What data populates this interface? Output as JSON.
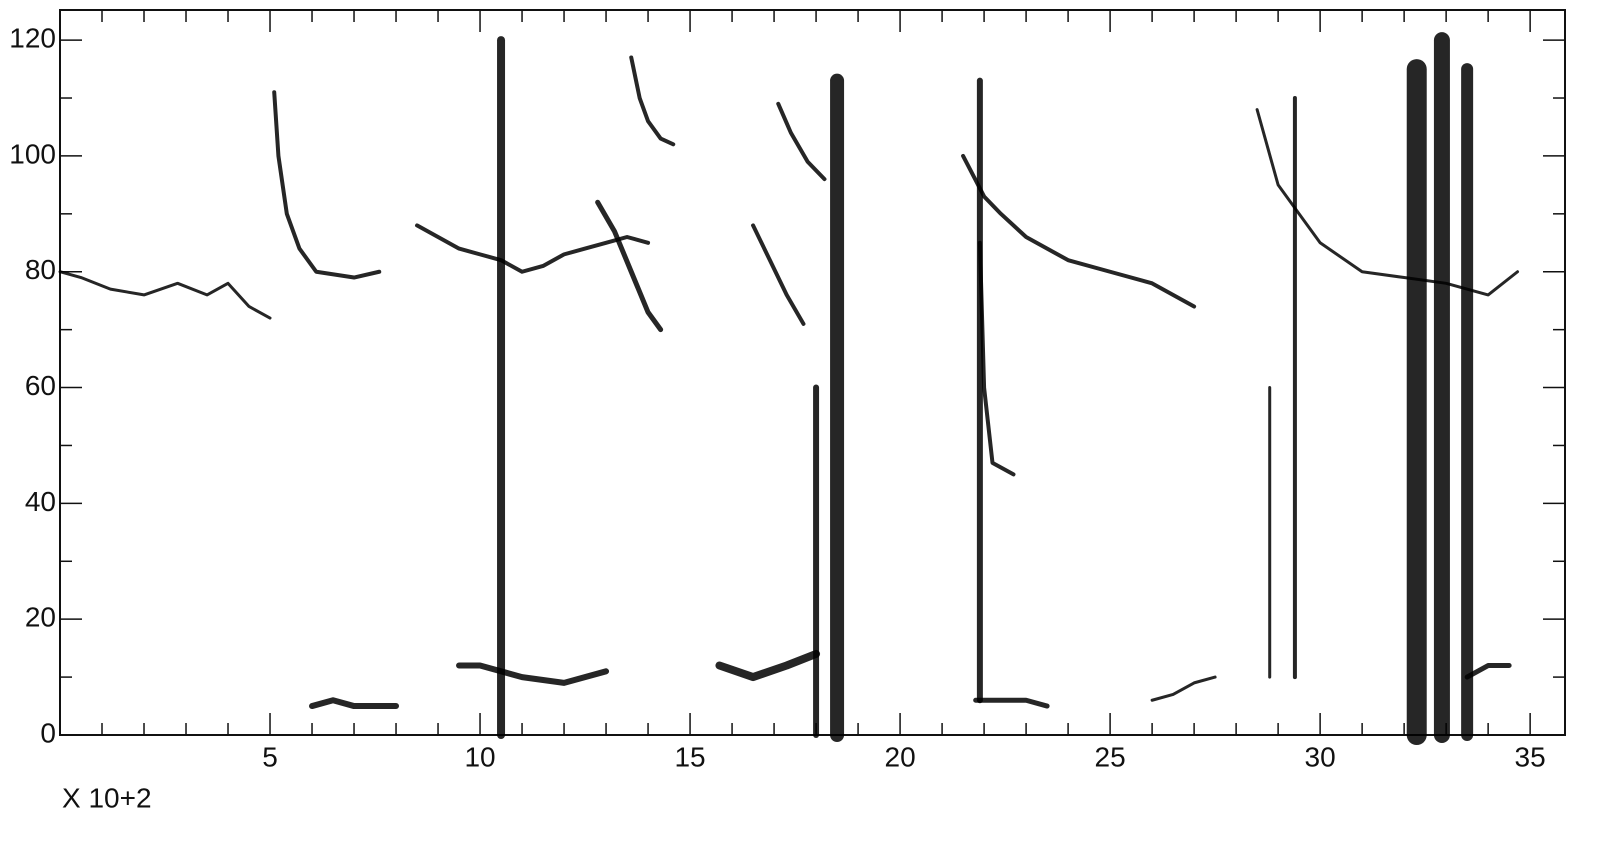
{
  "chart_data": {
    "type": "line",
    "xlabel": "X 10+2",
    "xlim": [
      0,
      35.83
    ],
    "ylim": [
      0,
      125.2
    ],
    "xticks": [
      5,
      10,
      15,
      20,
      25,
      30,
      35
    ],
    "yticks": [
      0,
      20,
      40,
      60,
      80,
      100,
      120
    ],
    "x_minor_ticks": [
      1,
      2,
      3,
      4,
      6,
      7,
      8,
      9,
      11,
      12,
      13,
      14,
      16,
      17,
      18,
      19,
      21,
      22,
      23,
      24,
      26,
      27,
      28,
      29,
      31,
      32,
      33,
      34
    ],
    "y_minor_ticks": [
      10,
      30,
      50,
      70,
      90,
      110
    ],
    "color": "#000000",
    "series": [
      {
        "x": [
          0,
          0.5,
          1.2,
          2,
          2.8,
          3.5,
          4,
          4.5,
          5
        ],
        "values": [
          80,
          79,
          77,
          76,
          78,
          76,
          78,
          74,
          72
        ],
        "line_width": 3
      },
      {
        "x": [
          5.1,
          5.2,
          5.4,
          5.7,
          6.1,
          7,
          7.6
        ],
        "values": [
          111,
          100,
          90,
          84,
          80,
          79,
          80
        ],
        "line_width": 4
      },
      {
        "x": [
          8.5,
          9,
          9.5,
          10,
          10.5,
          11,
          11.5,
          12,
          12.5,
          13,
          13.5,
          14
        ],
        "values": [
          88,
          86,
          84,
          83,
          82,
          80,
          81,
          83,
          84,
          85,
          86,
          85
        ],
        "line_width": 4
      },
      {
        "x": [
          13.6,
          13.8,
          14,
          14.3,
          14.6
        ],
        "values": [
          117,
          110,
          106,
          103,
          102
        ],
        "line_width": 4
      },
      {
        "x": [
          12.8,
          13.2,
          13.6,
          14,
          14.3
        ],
        "values": [
          92,
          87,
          80,
          73,
          70
        ],
        "line_width": 5
      },
      {
        "x": [
          17.1,
          17.4,
          17.8,
          18.2
        ],
        "values": [
          109,
          104,
          99,
          96
        ],
        "line_width": 4
      },
      {
        "x": [
          16.5,
          16.9,
          17.3,
          17.7
        ],
        "values": [
          88,
          82,
          76,
          71
        ],
        "line_width": 4
      },
      {
        "x": [
          21.5,
          22,
          22.4,
          23,
          24,
          25,
          26,
          27
        ],
        "values": [
          100,
          93,
          90,
          86,
          82,
          80,
          78,
          74
        ],
        "line_width": 4
      },
      {
        "x": [
          21.9,
          22,
          22.2,
          22.7
        ],
        "values": [
          85,
          60,
          47,
          45
        ],
        "line_width": 4
      },
      {
        "x": [
          28.5,
          29,
          29.5,
          30,
          31,
          32,
          33,
          34,
          34.7
        ],
        "values": [
          108,
          95,
          90,
          85,
          80,
          79,
          78,
          76,
          80
        ],
        "line_width": 3
      },
      {
        "x": [
          10.5,
          10.5
        ],
        "values": [
          0,
          120
        ],
        "line_width": 8
      },
      {
        "x": [
          18.5,
          18.5
        ],
        "values": [
          0,
          113
        ],
        "line_width": 14
      },
      {
        "x": [
          18,
          18
        ],
        "values": [
          0,
          60
        ],
        "line_width": 6
      },
      {
        "x": [
          21.9,
          21.9
        ],
        "values": [
          6,
          113
        ],
        "line_width": 6
      },
      {
        "x": [
          29.4,
          29.4
        ],
        "values": [
          10,
          110
        ],
        "line_width": 4
      },
      {
        "x": [
          28.8,
          28.8
        ],
        "values": [
          10,
          60
        ],
        "line_width": 3
      },
      {
        "x": [
          32.3,
          32.3
        ],
        "values": [
          0,
          115
        ],
        "line_width": 20
      },
      {
        "x": [
          32.9,
          32.9
        ],
        "values": [
          0,
          120
        ],
        "line_width": 16
      },
      {
        "x": [
          33.5,
          33.5
        ],
        "values": [
          0,
          115
        ],
        "line_width": 12
      },
      {
        "x": [
          6,
          6.5,
          7,
          7.5,
          8
        ],
        "values": [
          5,
          6,
          5,
          5,
          5
        ],
        "line_width": 6
      },
      {
        "x": [
          9.5,
          10,
          11,
          12,
          13
        ],
        "values": [
          12,
          12,
          10,
          9,
          11
        ],
        "line_width": 6
      },
      {
        "x": [
          15.7,
          16.5,
          17.3,
          18
        ],
        "values": [
          12,
          10,
          12,
          14
        ],
        "line_width": 8
      },
      {
        "x": [
          21.8,
          22.5,
          23,
          23.5
        ],
        "values": [
          6,
          6,
          6,
          5
        ],
        "line_width": 5
      },
      {
        "x": [
          26,
          26.5,
          27,
          27.5
        ],
        "values": [
          6,
          7,
          9,
          10
        ],
        "line_width": 3
      },
      {
        "x": [
          33.5,
          34,
          34.5
        ],
        "values": [
          10,
          12,
          12
        ],
        "line_width": 5
      }
    ]
  }
}
